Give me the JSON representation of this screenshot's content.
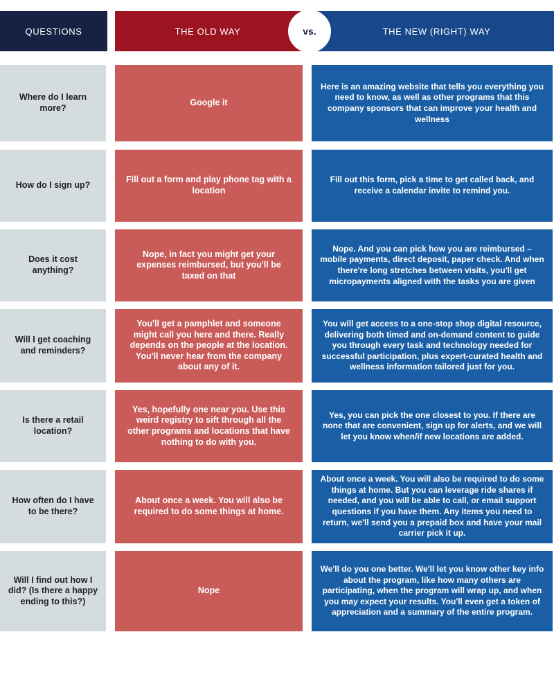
{
  "header": {
    "questions_label": "QUESTIONS",
    "old_way_label": "THE OLD WAY",
    "vs_label": "vs.",
    "new_way_label": "THE NEW (RIGHT) WAY"
  },
  "rows": [
    {
      "question": "Where do I learn more?",
      "old": "Google it",
      "new": "Here is an amazing website that tells you everything you need to know, as well as other programs that this company sponsors that can improve your health and wellness"
    },
    {
      "question": "How do I sign up?",
      "old": "Fill out a form and play phone tag with a location",
      "new": "Fill out this form, pick a time to get called back, and receive a calendar invite to remind you."
    },
    {
      "question": "Does it cost anything?",
      "old": "Nope, in fact you might get your expenses reimbursed, but you'll be taxed on that",
      "new": "Nope. And you can pick how you are reimbursed – mobile payments, direct deposit, paper check. And when there're long stretches between visits, you'll get micropayments aligned with the tasks you are given"
    },
    {
      "question": "Will I get coaching and reminders?",
      "old": "You'll get a pamphlet and someone might call you here and there. Really depends on the people at the location. You'll never hear from the company about any of it.",
      "new": "You will get access to a one-stop shop digital resource, delivering both timed and on-demand content to guide you through every task and technology needed for successful participation, plus expert-curated health and wellness information tailored just for you."
    },
    {
      "question": "Is there a retail location?",
      "old": "Yes, hopefully one near you. Use this weird registry to sift through all the other programs and locations that have nothing to do with you.",
      "new": "Yes, you can pick the one closest to you. If there are none that are convenient, sign up for alerts, and we will let you know when/if new locations are added."
    },
    {
      "question": "How often do I have to be there?",
      "old": "About once a week. You will also be required to do some things at home.",
      "new": "About once a week. You will also be required to do some things at home. But you can leverage ride shares if needed, and you will be able to call, or email support questions if you have them. Any items you need to return, we'll send you a prepaid box and have your mail carrier pick it up."
    },
    {
      "question": "Will I find out how I did? (Is there a happy ending to this?)",
      "old": "Nope",
      "new": "We'll do you one better. We'll let you know other key info about the program, like how many others are participating, when the program will wrap up, and when you may expect your results. You'll even get a token of appreciation and a summary of the entire program."
    }
  ]
}
